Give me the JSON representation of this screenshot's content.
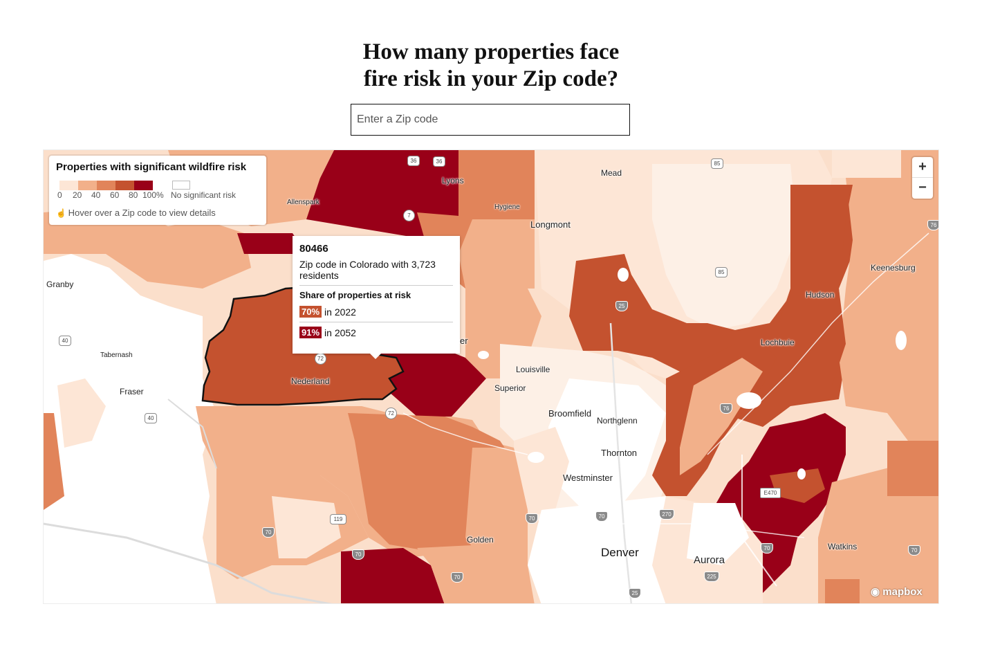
{
  "headline": {
    "line1": "How many properties face",
    "line2": "fire risk in your Zip code?"
  },
  "search": {
    "placeholder": "Enter a Zip code"
  },
  "legend": {
    "title": "Properties with significant wildfire risk",
    "scale": [
      {
        "label": "0",
        "color": "#fde6d6"
      },
      {
        "label": "20",
        "color": "#f2b08a"
      },
      {
        "label": "40",
        "color": "#e1845a"
      },
      {
        "label": "60",
        "color": "#c4522f"
      },
      {
        "label": "80",
        "color": "#990018"
      }
    ],
    "end_label": "100%",
    "no_risk_label": "No significant risk",
    "no_risk_color": "#ffffff",
    "hint_icon": "hand-pointer-icon",
    "hint": "Hover over a Zip code to view details"
  },
  "zoom": {
    "in_label": "+",
    "out_label": "−"
  },
  "tooltip": {
    "zip": "80466",
    "description": "Zip code in Colorado with 3,723 residents",
    "share_heading": "Share of properties at risk",
    "rows": [
      {
        "value": "70%",
        "year_label": "in 2022",
        "color": "#c4522f"
      },
      {
        "value": "91%",
        "year_label": "in 2052",
        "color": "#990018"
      }
    ]
  },
  "places": {
    "mead": "Mead",
    "lyons": "Lyons",
    "allenspark": "Allenspark",
    "hygiene": "Hygiene",
    "longmont": "Longmont",
    "keenesburg": "Keenesburg",
    "granby": "Granby",
    "hudson": "Hudson",
    "lochbuie": "Lochbuie",
    "tabernash": "Tabernash",
    "fraser": "Fraser",
    "nederland": "Nederland",
    "louisville": "Louisville",
    "superior": "Superior",
    "broomfield": "Broomfield",
    "northglenn": "Northglenn",
    "thornton": "Thornton",
    "westminster": "Westminster",
    "golden": "Golden",
    "denver": "Denver",
    "aurora": "Aurora",
    "watkins": "Watkins",
    "boulder_fragment": "er"
  },
  "shields": {
    "us36a": "36",
    "us36b": "36",
    "us85a": "85",
    "us85b": "85",
    "co7": "7",
    "i25a": "25",
    "us40a": "40",
    "us40b": "40",
    "co72a": "72",
    "co72b": "72",
    "i76a": "76",
    "i76b": "76",
    "co119": "119",
    "i70a": "70",
    "i70b": "70",
    "i70c": "70",
    "i70d": "70",
    "i70e": "70",
    "i70f": "70",
    "i70g": "70",
    "i270": "270",
    "e470": "E470",
    "i225": "225",
    "i25b": "25"
  },
  "attribution": "mapbox"
}
